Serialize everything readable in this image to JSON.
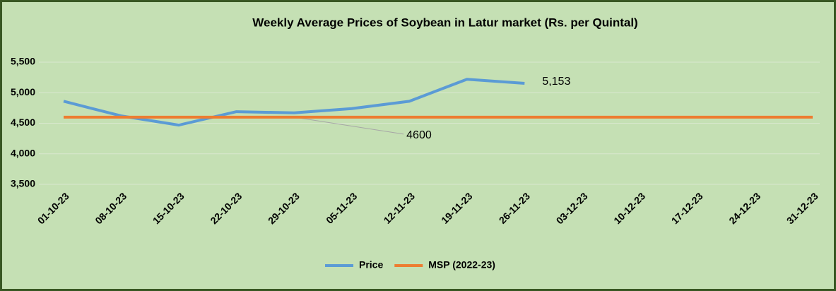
{
  "chart_data": {
    "type": "line",
    "title": "Weekly Average Prices of Soybean in Latur market (Rs. per Quintal)",
    "categories": [
      "01-10-23",
      "08-10-23",
      "15-10-23",
      "22-10-23",
      "29-10-23",
      "05-11-23",
      "12-11-23",
      "19-11-23",
      "26-11-23",
      "03-12-23",
      "10-12-23",
      "17-12-23",
      "24-12-23",
      "31-12-23"
    ],
    "series": [
      {
        "name": "Price",
        "color": "#5b9bd5",
        "values": [
          4860,
          4620,
          4470,
          4690,
          4670,
          4740,
          4860,
          5220,
          5153,
          null,
          null,
          null,
          null,
          null
        ],
        "value_labels": [
          null,
          null,
          null,
          null,
          null,
          null,
          null,
          null,
          "5,153",
          null,
          null,
          null,
          null,
          null
        ]
      },
      {
        "name": "MSP (2022-23)",
        "color": "#ed7d31",
        "values": [
          4600,
          4600,
          4600,
          4600,
          4600,
          4600,
          4600,
          4600,
          4600,
          4600,
          4600,
          4600,
          4600,
          4600
        ],
        "value_labels": [
          null,
          null,
          null,
          null,
          null,
          null,
          null,
          null,
          null,
          null,
          null,
          null,
          null,
          null
        ]
      }
    ],
    "ylim": [
      3500,
      5500
    ],
    "yticks": [
      {
        "value": 3500,
        "label": "3,500"
      },
      {
        "value": 4000,
        "label": "4,000"
      },
      {
        "value": 4500,
        "label": "4,500"
      },
      {
        "value": 5000,
        "label": "5,000"
      },
      {
        "value": 5500,
        "label": "5,500"
      }
    ],
    "annotations": [
      {
        "text": "4600",
        "series": 1,
        "index": 4
      }
    ],
    "grid": true,
    "legend": "bottom"
  }
}
